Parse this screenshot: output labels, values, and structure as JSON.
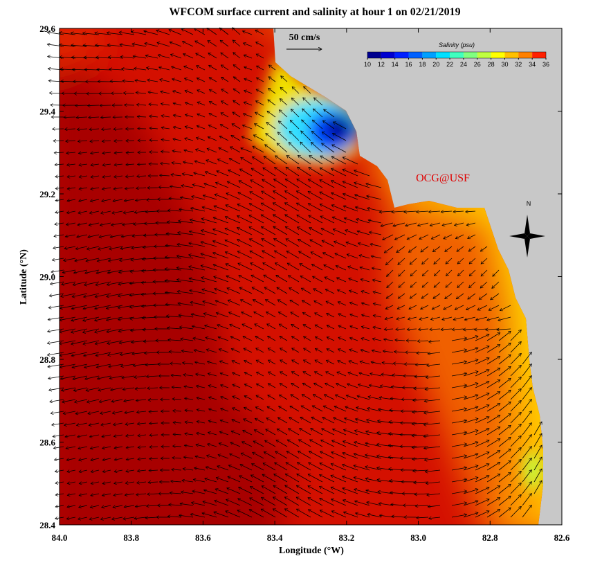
{
  "map": {
    "title": "WFCOM surface current and salinity at hour 1 on 02/21/2019",
    "x_label": "Longitude (°W)",
    "y_label": "Latitude (°N)",
    "xlim": [
      84.0,
      82.6
    ],
    "ylim": [
      28.4,
      29.6
    ],
    "xticks": [
      {
        "value": 84,
        "label": "84.0"
      },
      83.8,
      83.6,
      83.4,
      83.2,
      {
        "value": 83,
        "label": "83.0"
      },
      82.8,
      82.6
    ],
    "yticks": [
      28.4,
      28.6,
      28.8,
      {
        "value": 29,
        "label": "29.0"
      },
      29.2,
      29.4,
      29.6
    ],
    "scale_label": "50 cm/s",
    "credit": "OCG@USF",
    "compass_label": "N",
    "colorbar": {
      "title": "Salinity (psu)",
      "lim": [
        10,
        36
      ],
      "ticks": [
        10,
        12,
        14,
        16,
        18,
        20,
        22,
        24,
        26,
        28,
        30,
        32,
        34,
        36
      ],
      "colors": [
        "#00008f",
        "#0000d0",
        "#0020ff",
        "#0060ff",
        "#00a0ff",
        "#00e0ff",
        "#40ffbf",
        "#80ff80",
        "#c0ff40",
        "#ffff00",
        "#ffc000",
        "#ff8000",
        "#ff2000"
      ]
    }
  }
}
